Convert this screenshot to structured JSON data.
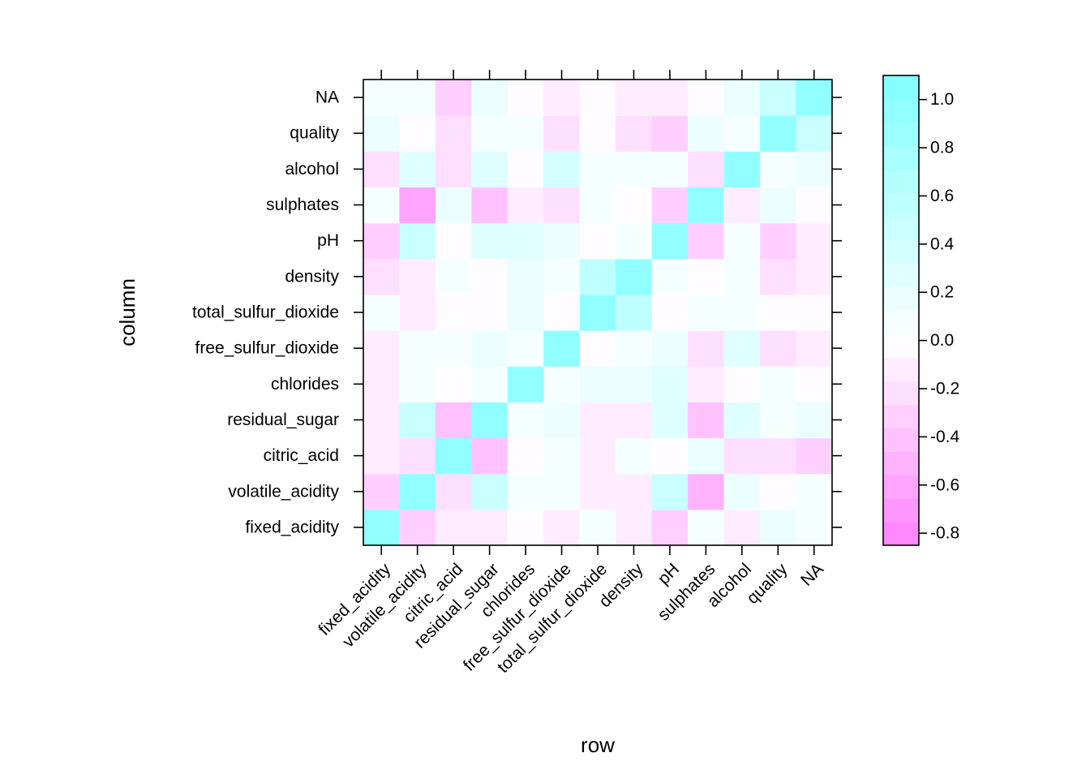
{
  "chart_data": {
    "type": "heatmap",
    "xlabel": "row",
    "ylabel": "column",
    "x_categories": [
      "fixed_acidity",
      "volatile_acidity",
      "citric_acid",
      "residual_sugar",
      "chlorides",
      "free_sulfur_dioxide",
      "total_sulfur_dioxide",
      "density",
      "pH",
      "sulphates",
      "alcohol",
      "quality",
      "NA"
    ],
    "y_categories": [
      "fixed_acidity",
      "volatile_acidity",
      "citric_acid",
      "residual_sugar",
      "chlorides",
      "free_sulfur_dioxide",
      "total_sulfur_dioxide",
      "density",
      "pH",
      "sulphates",
      "alcohol",
      "quality",
      "NA"
    ],
    "values": [
      [
        1.0,
        -0.3,
        -0.1,
        -0.15,
        -0.1,
        -0.15,
        0.05,
        -0.2,
        -0.3,
        0.05,
        -0.2,
        0.2,
        0.05
      ],
      [
        -0.3,
        1.0,
        -0.25,
        0.5,
        0.05,
        0.05,
        -0.15,
        -0.15,
        0.5,
        -0.6,
        0.25,
        -0.05,
        0.05
      ],
      [
        -0.1,
        -0.25,
        1.0,
        -0.4,
        -0.05,
        0.05,
        -0.05,
        0.05,
        -0.05,
        0.2,
        -0.25,
        -0.25,
        -0.3
      ],
      [
        -0.15,
        0.5,
        -0.4,
        1.0,
        0.05,
        0.15,
        -0.05,
        -0.05,
        0.25,
        -0.4,
        0.3,
        0.05,
        0.2
      ],
      [
        -0.05,
        0.05,
        -0.05,
        0.05,
        1.0,
        0.05,
        0.15,
        0.15,
        0.25,
        -0.15,
        -0.05,
        0.05,
        -0.05
      ],
      [
        -0.15,
        0.05,
        0.05,
        0.2,
        0.05,
        1.0,
        -0.05,
        0.05,
        0.2,
        -0.25,
        0.35,
        -0.25,
        -0.15
      ],
      [
        0.05,
        -0.15,
        -0.1,
        -0.1,
        0.2,
        -0.05,
        1.0,
        0.6,
        -0.05,
        0.05,
        0.05,
        -0.05,
        -0.05
      ],
      [
        -0.15,
        -0.15,
        0.05,
        -0.1,
        0.2,
        0.05,
        0.6,
        1.0,
        0.05,
        -0.05,
        0.05,
        -0.25,
        -0.15
      ],
      [
        -0.3,
        0.5,
        -0.05,
        0.25,
        0.25,
        0.2,
        -0.05,
        0.05,
        1.0,
        -0.3,
        0.05,
        -0.35,
        -0.15
      ],
      [
        0.05,
        -0.55,
        0.2,
        -0.4,
        -0.15,
        -0.25,
        0.05,
        -0.05,
        -0.3,
        1.0,
        -0.2,
        0.2,
        -0.05
      ],
      [
        -0.15,
        0.2,
        -0.25,
        0.3,
        -0.05,
        0.3,
        0.05,
        0.05,
        0.05,
        -0.15,
        1.0,
        0.05,
        0.2
      ],
      [
        0.2,
        -0.05,
        -0.25,
        0.05,
        0.05,
        -0.25,
        -0.05,
        -0.25,
        -0.35,
        0.2,
        0.05,
        1.0,
        0.5
      ],
      [
        0.05,
        0.05,
        -0.35,
        0.2,
        -0.05,
        -0.15,
        -0.05,
        -0.15,
        -0.15,
        -0.05,
        0.2,
        0.5,
        1.0
      ]
    ],
    "colorbar": {
      "ticks": [
        "1.0",
        "0.8",
        "0.6",
        "0.4",
        "0.2",
        "0.0",
        "-0.2",
        "-0.4",
        "-0.6",
        "-0.8"
      ],
      "range": [
        -0.85,
        1.1
      ],
      "low_color": "#ff80ff",
      "high_color": "#80ffff",
      "mid_color": "#ffffff"
    }
  }
}
